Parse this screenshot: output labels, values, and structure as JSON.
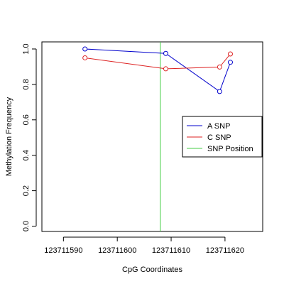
{
  "chart_data": {
    "type": "line",
    "title": "",
    "xlabel": "CpG Coordinates",
    "ylabel": "Methylation Frequency",
    "xlim": [
      123711586,
      123711627
    ],
    "ylim": [
      -0.03,
      1.04
    ],
    "xticks": [
      123711590,
      123711600,
      123711610,
      123711620
    ],
    "xtick_labels": [
      "123711590",
      "123711600",
      "123711610",
      "123711620"
    ],
    "yticks": [
      0,
      0.2,
      0.4,
      0.6,
      0.8,
      1.0
    ],
    "ytick_labels": [
      "0.0",
      "0.2",
      "0.4",
      "0.6",
      "0.8",
      "1.0"
    ],
    "series": [
      {
        "name": "A SNP",
        "color": "#0000cc",
        "x": [
          123711594,
          123711609,
          123711619,
          123711621
        ],
        "y": [
          1.0,
          0.975,
          0.76,
          0.925
        ]
      },
      {
        "name": "C SNP",
        "color": "#dd2222",
        "x": [
          123711594,
          123711609,
          123711619,
          123711621
        ],
        "y": [
          0.95,
          0.888,
          0.898,
          0.972
        ]
      }
    ],
    "vline": {
      "name": "SNP Position",
      "x": 123711608,
      "color": "#44cc44"
    },
    "legend": {
      "placement": "right",
      "entries": [
        {
          "label": "A SNP",
          "color": "#0000cc"
        },
        {
          "label": "C SNP",
          "color": "#dd2222"
        },
        {
          "label": "SNP Position",
          "color": "#44cc44"
        }
      ]
    },
    "grid": false
  }
}
